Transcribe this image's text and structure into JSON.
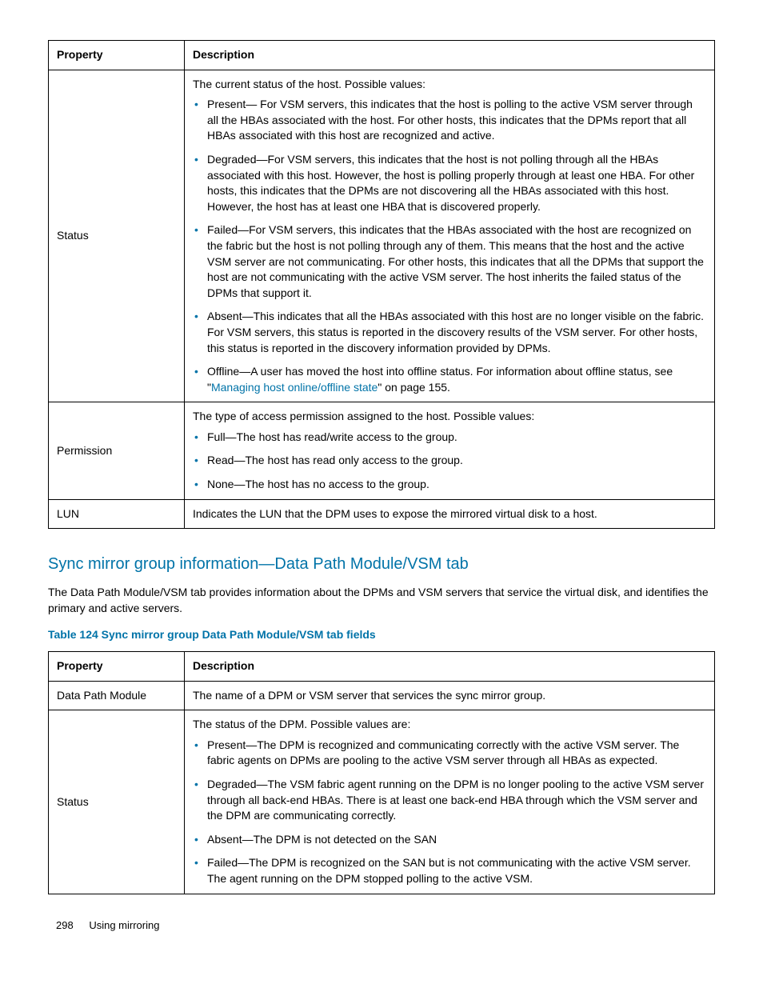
{
  "colors": {
    "accent": "#0073a8",
    "text": "#000000",
    "background": "#ffffff",
    "border": "#000000"
  },
  "typography": {
    "body_fontsize_pt": 10.5,
    "heading_fontsize_pt": 15,
    "font_family": "Arial"
  },
  "table1": {
    "headers": {
      "property": "Property",
      "description": "Description"
    },
    "rows": [
      {
        "property": "Status",
        "intro": "The current status of the host. Possible values:",
        "items": [
          "Present— For VSM servers, this indicates that the host is polling to the active VSM server through all the HBAs associated with the host. For other hosts, this indicates that the DPMs report that all HBAs associated with this host are recognized and active.",
          "Degraded—For VSM servers, this indicates that the host is not polling through all the HBAs associated with this host. However, the host is polling properly through at least one HBA. For other hosts, this indicates that the DPMs are not discovering all the HBAs associated with this host. However, the host has at least one HBA that is discovered properly.",
          "Failed—For VSM servers, this indicates that the HBAs associated with the host are recognized on the fabric but the host is not polling through any of them. This means that the host and the active VSM server are not communicating. For other hosts, this indicates that all the DPMs that support the host are not communicating with the active VSM server. The host inherits the failed status of the DPMs that support it.",
          "Absent—This indicates that all the HBAs associated with this host are no longer visible on the fabric. For VSM servers, this status is reported in the discovery results of the VSM server. For other hosts, this status is reported in the discovery information provided by DPMs."
        ],
        "offline_pre": "Offline—A user has moved the host into offline status. For information about offline status, see \"",
        "offline_link": "Managing host online/offline state",
        "offline_post": "\" on page 155."
      },
      {
        "property": "Permission",
        "intro": "The type of access permission assigned to the host. Possible values:",
        "items": [
          "Full—The host has read/write access to the group.",
          "Read—The host has read only access to the group.",
          "None—The host has no access to the group."
        ]
      },
      {
        "property": "LUN",
        "description": "Indicates the LUN that the DPM uses to expose the mirrored virtual disk to a host."
      }
    ]
  },
  "section": {
    "heading": "Sync mirror group information—Data Path Module/VSM tab",
    "paragraph": "The Data Path Module/VSM tab provides information about the DPMs and VSM servers that service the virtual disk, and identifies the primary and active servers.",
    "table_caption": "Table 124 Sync mirror group Data Path Module/VSM tab fields"
  },
  "table2": {
    "headers": {
      "property": "Property",
      "description": "Description"
    },
    "rows": [
      {
        "property": "Data Path Module",
        "description": "The name of a DPM or VSM server that services the sync mirror group."
      },
      {
        "property": "Status",
        "intro": "The status of the DPM. Possible values are:",
        "items": [
          "Present—The DPM is recognized and communicating correctly with the active VSM server. The fabric agents on DPMs are pooling to the active VSM server through all HBAs as expected.",
          "Degraded—The VSM fabric agent running on the DPM is no longer pooling to the active VSM server through all back-end HBAs. There is at least one back-end HBA through which the VSM server and the DPM are communicating correctly.",
          "Absent—The DPM is not detected on the SAN",
          "Failed—The DPM is recognized on the SAN but is not communicating with the active VSM server. The agent running on the DPM stopped polling to the active VSM."
        ]
      }
    ]
  },
  "footer": {
    "page_number": "298",
    "chapter": "Using mirroring"
  }
}
